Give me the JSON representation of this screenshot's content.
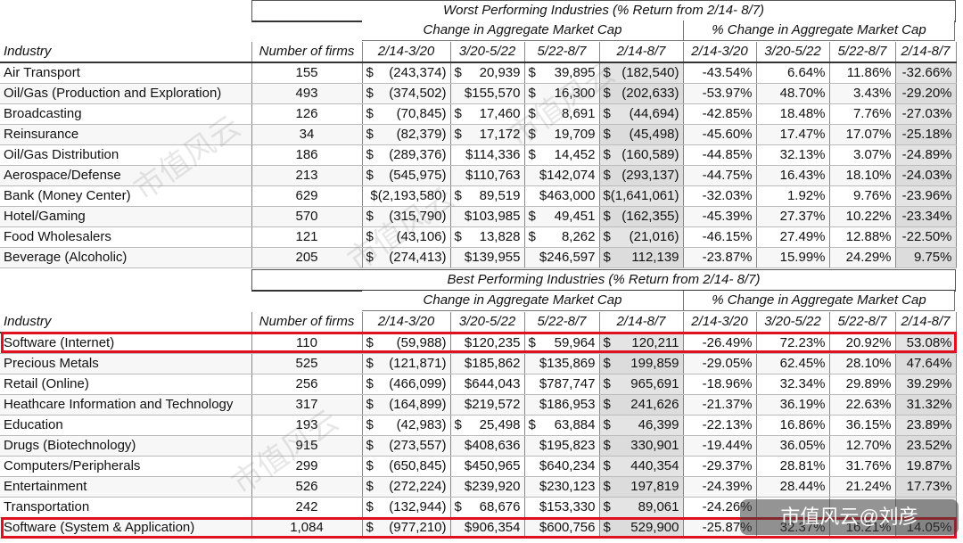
{
  "worst": {
    "title": "Worst Performing Industries (% Return from 2/14- 8/7)",
    "group_cap": "Change in Aggregate Market Cap",
    "group_pct": "% Change in Aggregate Market Cap",
    "headers": [
      "Industry",
      "Number of firms",
      "2/14-3/20",
      "3/20-5/22",
      "5/22-8/7",
      "2/14-8/7",
      "2/14-3/20",
      "3/20-5/22",
      "5/22-8/7",
      "2/14-8/7"
    ],
    "rows": [
      {
        "industry": "Air Transport",
        "firms": "155",
        "cap": [
          [
            "$",
            "(243,374)"
          ],
          [
            "$",
            "20,939"
          ],
          [
            "$",
            "39,895"
          ],
          [
            "$",
            "(182,540)"
          ]
        ],
        "pct": [
          "-43.54%",
          "6.64%",
          "11.86%",
          "-32.66%"
        ]
      },
      {
        "industry": "Oil/Gas (Production and Exploration)",
        "firms": "493",
        "cap": [
          [
            "$",
            "(374,502)"
          ],
          [
            "",
            "$155,570"
          ],
          [
            "$",
            "16,300"
          ],
          [
            "$",
            "(202,633)"
          ]
        ],
        "pct": [
          "-53.97%",
          "48.70%",
          "3.43%",
          "-29.20%"
        ]
      },
      {
        "industry": "Broadcasting",
        "firms": "126",
        "cap": [
          [
            "$",
            "(70,845)"
          ],
          [
            "$",
            "17,460"
          ],
          [
            "$",
            "8,691"
          ],
          [
            "$",
            "(44,694)"
          ]
        ],
        "pct": [
          "-42.85%",
          "18.48%",
          "7.76%",
          "-27.03%"
        ]
      },
      {
        "industry": "Reinsurance",
        "firms": "34",
        "cap": [
          [
            "$",
            "(82,379)"
          ],
          [
            "$",
            "17,172"
          ],
          [
            "$",
            "19,709"
          ],
          [
            "$",
            "(45,498)"
          ]
        ],
        "pct": [
          "-45.60%",
          "17.47%",
          "17.07%",
          "-25.18%"
        ]
      },
      {
        "industry": "Oil/Gas Distribution",
        "firms": "186",
        "cap": [
          [
            "$",
            "(289,376)"
          ],
          [
            "",
            "$114,336"
          ],
          [
            "$",
            "14,452"
          ],
          [
            "$",
            "(160,589)"
          ]
        ],
        "pct": [
          "-44.85%",
          "32.13%",
          "3.07%",
          "-24.89%"
        ]
      },
      {
        "industry": "Aerospace/Defense",
        "firms": "213",
        "cap": [
          [
            "$",
            "(545,975)"
          ],
          [
            "",
            "$110,763"
          ],
          [
            "",
            "$142,074"
          ],
          [
            "$",
            "(293,137)"
          ]
        ],
        "pct": [
          "-44.75%",
          "16.43%",
          "18.10%",
          "-24.03%"
        ]
      },
      {
        "industry": "Bank (Money Center)",
        "firms": "629",
        "cap": [
          [
            "",
            "$(2,193,580)"
          ],
          [
            "$",
            "89,519"
          ],
          [
            "",
            "$463,000"
          ],
          [
            "",
            "$(1,641,061)"
          ]
        ],
        "pct": [
          "-32.03%",
          "1.92%",
          "9.76%",
          "-23.96%"
        ]
      },
      {
        "industry": "Hotel/Gaming",
        "firms": "570",
        "cap": [
          [
            "$",
            "(315,790)"
          ],
          [
            "",
            "$103,985"
          ],
          [
            "$",
            "49,451"
          ],
          [
            "$",
            "(162,355)"
          ]
        ],
        "pct": [
          "-45.39%",
          "27.37%",
          "10.22%",
          "-23.34%"
        ]
      },
      {
        "industry": "Food Wholesalers",
        "firms": "121",
        "cap": [
          [
            "$",
            "(43,106)"
          ],
          [
            "$",
            "13,828"
          ],
          [
            "$",
            "8,262"
          ],
          [
            "$",
            "(21,016)"
          ]
        ],
        "pct": [
          "-46.15%",
          "27.49%",
          "12.88%",
          "-22.50%"
        ]
      },
      {
        "industry": "Beverage (Alcoholic)",
        "firms": "205",
        "cap": [
          [
            "$",
            "(274,413)"
          ],
          [
            "",
            "$139,955"
          ],
          [
            "",
            "$246,597"
          ],
          [
            "$",
            "112,139"
          ]
        ],
        "pct": [
          "-23.87%",
          "15.99%",
          "24.29%",
          "9.75%"
        ]
      }
    ]
  },
  "best": {
    "title": "Best Performing Industries (% Return from 2/14- 8/7)",
    "group_cap": "Change in Aggregate Market Cap",
    "group_pct": "% Change in Aggregate Market Cap",
    "headers": [
      "Industry",
      "Number of firms",
      "2/14-3/20",
      "3/20-5/22",
      "5/22-8/7",
      "2/14-8/7",
      "2/14-3/20",
      "3/20-5/22",
      "5/22-8/7",
      "2/14-8/7"
    ],
    "rows": [
      {
        "industry": "Software (Internet)",
        "firms": "110",
        "cap": [
          [
            "$",
            "(59,988)"
          ],
          [
            "",
            "$120,235"
          ],
          [
            "$",
            "59,964"
          ],
          [
            "$",
            "120,211"
          ]
        ],
        "pct": [
          "-26.49%",
          "72.23%",
          "20.92%",
          "53.08%"
        ]
      },
      {
        "industry": "Precious Metals",
        "firms": "525",
        "cap": [
          [
            "$",
            "(121,871)"
          ],
          [
            "",
            "$185,862"
          ],
          [
            "",
            "$135,869"
          ],
          [
            "$",
            "199,859"
          ]
        ],
        "pct": [
          "-29.05%",
          "62.45%",
          "28.10%",
          "47.64%"
        ]
      },
      {
        "industry": "Retail (Online)",
        "firms": "256",
        "cap": [
          [
            "$",
            "(466,099)"
          ],
          [
            "",
            "$644,043"
          ],
          [
            "",
            "$787,747"
          ],
          [
            "$",
            "965,691"
          ]
        ],
        "pct": [
          "-18.96%",
          "32.34%",
          "29.89%",
          "39.29%"
        ]
      },
      {
        "industry": "Heathcare Information and Technology",
        "firms": "317",
        "cap": [
          [
            "$",
            "(164,899)"
          ],
          [
            "",
            "$219,572"
          ],
          [
            "",
            "$186,953"
          ],
          [
            "$",
            "241,626"
          ]
        ],
        "pct": [
          "-21.37%",
          "36.19%",
          "22.63%",
          "31.32%"
        ]
      },
      {
        "industry": "Education",
        "firms": "193",
        "cap": [
          [
            "$",
            "(42,983)"
          ],
          [
            "$",
            "25,498"
          ],
          [
            "$",
            "63,884"
          ],
          [
            "$",
            "46,399"
          ]
        ],
        "pct": [
          "-22.13%",
          "16.86%",
          "36.15%",
          "23.89%"
        ]
      },
      {
        "industry": "Drugs (Biotechnology)",
        "firms": "915",
        "cap": [
          [
            "$",
            "(273,557)"
          ],
          [
            "",
            "$408,636"
          ],
          [
            "",
            "$195,823"
          ],
          [
            "$",
            "330,901"
          ]
        ],
        "pct": [
          "-19.44%",
          "36.05%",
          "12.70%",
          "23.52%"
        ]
      },
      {
        "industry": "Computers/Peripherals",
        "firms": "299",
        "cap": [
          [
            "$",
            "(650,845)"
          ],
          [
            "",
            "$450,965"
          ],
          [
            "",
            "$640,234"
          ],
          [
            "$",
            "440,354"
          ]
        ],
        "pct": [
          "-29.37%",
          "28.81%",
          "31.76%",
          "19.87%"
        ]
      },
      {
        "industry": "Entertainment",
        "firms": "526",
        "cap": [
          [
            "$",
            "(272,224)"
          ],
          [
            "",
            "$239,920"
          ],
          [
            "",
            "$230,123"
          ],
          [
            "$",
            "197,819"
          ]
        ],
        "pct": [
          "-24.39%",
          "28.44%",
          "21.24%",
          "17.73%"
        ]
      },
      {
        "industry": "Transportation",
        "firms": "242",
        "cap": [
          [
            "$",
            "(132,944)"
          ],
          [
            "$",
            "68,676"
          ],
          [
            "",
            "$153,330"
          ],
          [
            "$",
            "89,061"
          ]
        ],
        "pct": [
          "-24.26%",
          "",
          "",
          ""
        ]
      },
      {
        "industry": "Software (System & Application)",
        "firms": "1,084",
        "cap": [
          [
            "$",
            "(977,210)"
          ],
          [
            "",
            "$906,354"
          ],
          [
            "",
            "$600,756"
          ],
          [
            "$",
            "529,900"
          ]
        ],
        "pct": [
          "-25.87%",
          "32.37%",
          "16.21%",
          "14.05%"
        ]
      }
    ]
  },
  "highlight_color": "#e0101e",
  "watermark": {
    "badge": "市值风云@刘彦",
    "text": "市值风云"
  }
}
